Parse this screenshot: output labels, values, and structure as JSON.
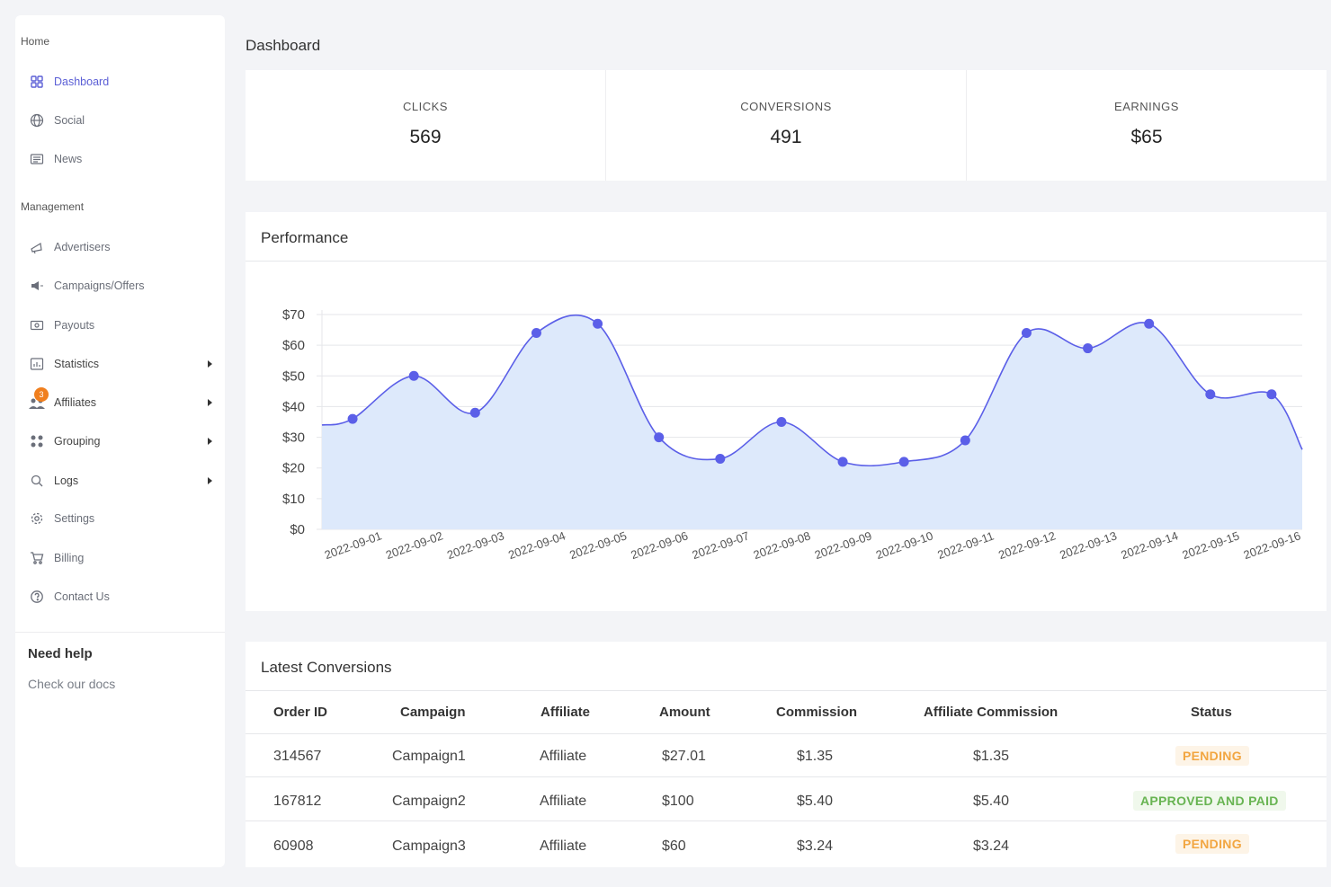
{
  "sidebar": {
    "home_section": "Home",
    "management_section": "Management",
    "items": [
      {
        "label": "Dashboard"
      },
      {
        "label": "Social"
      },
      {
        "label": "News"
      },
      {
        "label": "Advertisers"
      },
      {
        "label": "Campaigns/Offers"
      },
      {
        "label": "Payouts"
      },
      {
        "label": "Statistics"
      },
      {
        "label": "Affiliates",
        "badge": "3"
      },
      {
        "label": "Grouping"
      },
      {
        "label": "Logs"
      },
      {
        "label": "Settings"
      },
      {
        "label": "Billing"
      },
      {
        "label": "Contact Us"
      }
    ],
    "help_title": "Need help",
    "help_link": "Check our docs"
  },
  "page_title": "Dashboard",
  "stats": [
    {
      "label": "CLICKS",
      "value": "569"
    },
    {
      "label": "CONVERSIONS",
      "value": "491"
    },
    {
      "label": "EARNINGS",
      "value": "$65"
    }
  ],
  "performance": {
    "title": "Performance",
    "colors": {
      "line": "#5b5fe8",
      "fill": "#dde9fb",
      "grid": "#e5e6ea"
    }
  },
  "chart_data": {
    "type": "area",
    "x": [
      "2022-09-01",
      "2022-09-02",
      "2022-09-03",
      "2022-09-04",
      "2022-09-05",
      "2022-09-06",
      "2022-09-07",
      "2022-09-08",
      "2022-09-09",
      "2022-09-10",
      "2022-09-11",
      "2022-09-12",
      "2022-09-13",
      "2022-09-14",
      "2022-09-15",
      "2022-09-16"
    ],
    "series": [
      {
        "values": [
          36,
          50,
          38,
          64,
          67,
          30,
          23,
          35,
          22,
          22,
          29,
          64,
          59,
          67,
          44,
          44
        ]
      }
    ],
    "yticks": [
      "$0",
      "$10",
      "$20",
      "$30",
      "$40",
      "$50",
      "$60",
      "$70"
    ],
    "ylim": [
      0,
      70
    ],
    "grid": true
  },
  "conversions": {
    "title": "Latest Conversions",
    "headers": [
      "Order ID",
      "Campaign",
      "Affiliate",
      "Amount",
      "Commission",
      "Affiliate Commission",
      "Status"
    ],
    "rows": [
      {
        "order_id": "314567",
        "campaign": "Campaign1",
        "affiliate": "Affiliate",
        "amount": "$27.01",
        "commission": "$1.35",
        "affiliate_commission": "$1.35",
        "status": "PENDING"
      },
      {
        "order_id": "167812",
        "campaign": "Campaign2",
        "affiliate": "Affiliate",
        "amount": "$100",
        "commission": "$5.40",
        "affiliate_commission": "$5.40",
        "status": "APPROVED AND PAID"
      },
      {
        "order_id": "60908",
        "campaign": "Campaign3",
        "affiliate": "Affiliate",
        "amount": "$60",
        "commission": "$3.24",
        "affiliate_commission": "$3.24",
        "status": "PENDING"
      }
    ]
  }
}
